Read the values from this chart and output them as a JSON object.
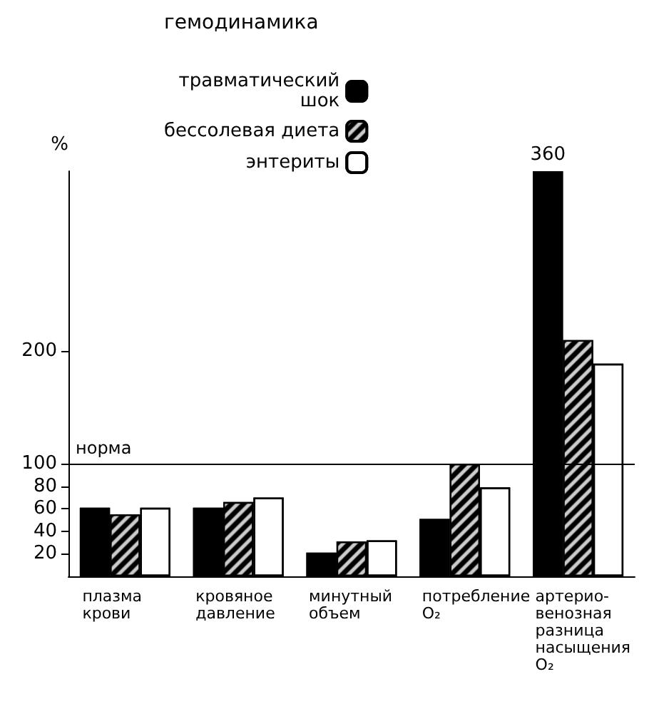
{
  "chart_data": {
    "type": "bar",
    "title": "гемодинамика",
    "ylabel": "%",
    "categories": [
      "плазма\nкрови",
      "кровяное\nдавление",
      "минутный\nобъем",
      "потребление\nO₂",
      "артерио-\nвенозная\nразница\nнасыщения\nO₂"
    ],
    "series": [
      {
        "name": "травматический\nшок",
        "color": "#000000",
        "values": [
          61,
          61,
          21,
          51,
          360
        ],
        "value_labels": [
          null,
          null,
          null,
          null,
          "360"
        ]
      },
      {
        "name": "бессолевая диета",
        "color": "#000000",
        "values": [
          55,
          66,
          31,
          100,
          210
        ]
      },
      {
        "name": "энтериты",
        "color": "#ffffff",
        "values": [
          61,
          70,
          32,
          79,
          189
        ]
      }
    ],
    "ylim": [
      0,
      360
    ],
    "yticks": [
      20,
      40,
      60,
      80,
      100,
      200
    ],
    "ref_lines": [
      {
        "axis": "y",
        "value": 100,
        "label": "норма",
        "color": "#000000"
      }
    ],
    "legend": "top",
    "grid": false
  }
}
